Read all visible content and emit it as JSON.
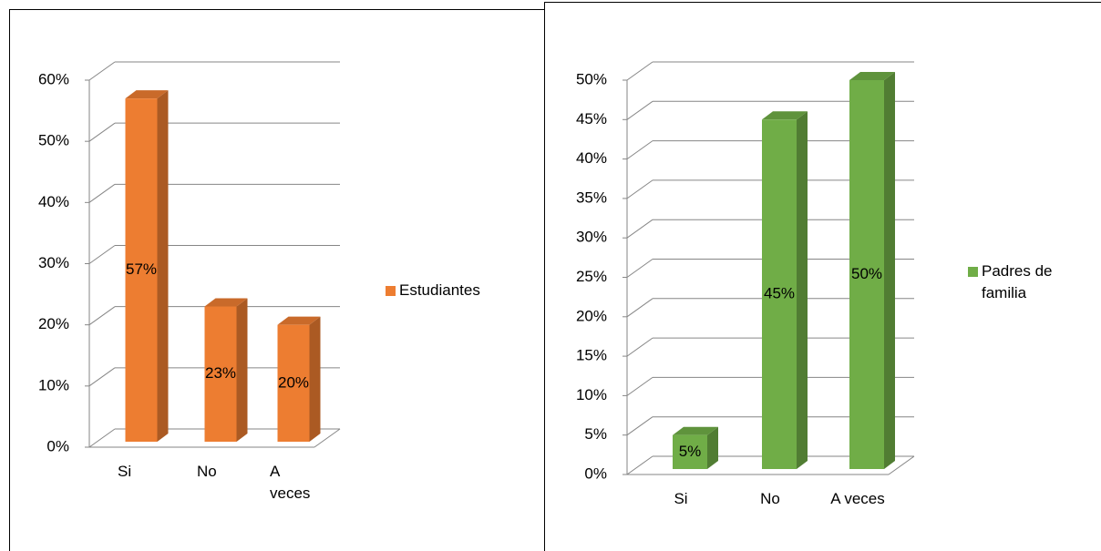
{
  "chart_data": [
    {
      "type": "bar3d",
      "categories": [
        "Si",
        "No",
        "A veces"
      ],
      "series": [
        {
          "name": "Estudiantes",
          "color": "#ED7D31",
          "values": [
            57,
            23,
            20
          ],
          "value_labels": [
            "57%",
            "23%",
            "20%"
          ]
        }
      ],
      "ylim": [
        0,
        60
      ],
      "yticks": [
        {
          "value": 0,
          "label": "0%"
        },
        {
          "value": 10,
          "label": "10%"
        },
        {
          "value": 20,
          "label": "20%"
        },
        {
          "value": 30,
          "label": "30%"
        },
        {
          "value": 40,
          "label": "40%"
        },
        {
          "value": 50,
          "label": "50%"
        },
        {
          "value": 60,
          "label": "60%"
        }
      ],
      "grid": true,
      "legend": "right"
    },
    {
      "type": "bar3d",
      "categories": [
        "Si",
        "No",
        "A veces"
      ],
      "series": [
        {
          "name": "Padres de familia",
          "color": "#70AD47",
          "values": [
            5,
            45,
            50
          ],
          "value_labels": [
            "5%",
            "45%",
            "50%"
          ]
        }
      ],
      "ylim": [
        0,
        50
      ],
      "yticks": [
        {
          "value": 0,
          "label": "0%"
        },
        {
          "value": 5,
          "label": "5%"
        },
        {
          "value": 10,
          "label": "10%"
        },
        {
          "value": 15,
          "label": "15%"
        },
        {
          "value": 20,
          "label": "20%"
        },
        {
          "value": 25,
          "label": "25%"
        },
        {
          "value": 30,
          "label": "30%"
        },
        {
          "value": 35,
          "label": "35%"
        },
        {
          "value": 40,
          "label": "40%"
        },
        {
          "value": 45,
          "label": "45%"
        },
        {
          "value": 50,
          "label": "50%"
        }
      ],
      "grid": true,
      "legend": "right"
    }
  ]
}
